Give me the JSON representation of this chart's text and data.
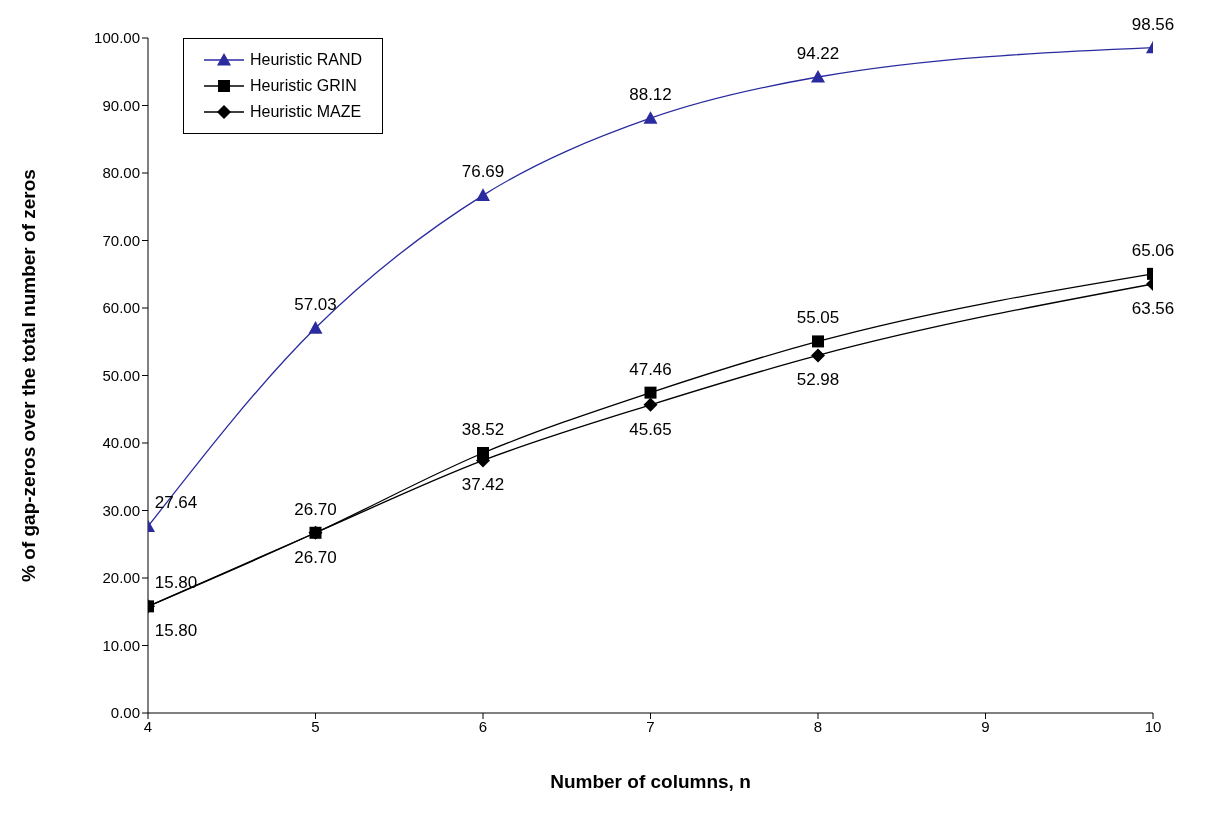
{
  "chart_data": {
    "type": "line",
    "xlabel": "Number of columns, n",
    "ylabel": "% of gap-zeros over the total number of zeros",
    "x": [
      4,
      5,
      6,
      7,
      8,
      10
    ],
    "xlim": [
      4,
      10
    ],
    "xticks": [
      4,
      5,
      6,
      7,
      8,
      9,
      10
    ],
    "ylim": [
      0,
      100
    ],
    "yticks": [
      {
        "value": 0,
        "label": "0.00"
      },
      {
        "value": 10,
        "label": "10.00"
      },
      {
        "value": 20,
        "label": "20.00"
      },
      {
        "value": 30,
        "label": "30.00"
      },
      {
        "value": 40,
        "label": "40.00"
      },
      {
        "value": 50,
        "label": "50.00"
      },
      {
        "value": 60,
        "label": "60.00"
      },
      {
        "value": 70,
        "label": "70.00"
      },
      {
        "value": 80,
        "label": "80.00"
      },
      {
        "value": 90,
        "label": "90.00"
      },
      {
        "value": 100,
        "label": "100.00"
      }
    ],
    "grid": false,
    "legend": "top left",
    "line_style": "solid",
    "series": [
      {
        "name": "Heuristic RAND",
        "color": "#2b2ba0",
        "marker": "triangle",
        "values": [
          27.64,
          57.03,
          76.69,
          88.12,
          94.22,
          98.56
        ],
        "value_labels": [
          "27.64",
          "57.03",
          "76.69",
          "88.12",
          "94.22",
          "98.56"
        ]
      },
      {
        "name": "Heuristic GRIN",
        "color": "#000000",
        "marker": "square",
        "values": [
          15.8,
          26.7,
          38.52,
          47.46,
          55.05,
          65.06
        ],
        "value_labels": [
          "15.80",
          "26.70",
          "38.52",
          "47.46",
          "55.05",
          "65.06"
        ]
      },
      {
        "name": "Heuristic MAZE",
        "color": "#000000",
        "marker": "diamond",
        "values": [
          15.8,
          26.7,
          37.42,
          45.65,
          52.98,
          63.56
        ],
        "value_labels": [
          "15.80",
          "26.70",
          "37.42",
          "45.65",
          "52.98",
          "63.56"
        ]
      }
    ]
  }
}
